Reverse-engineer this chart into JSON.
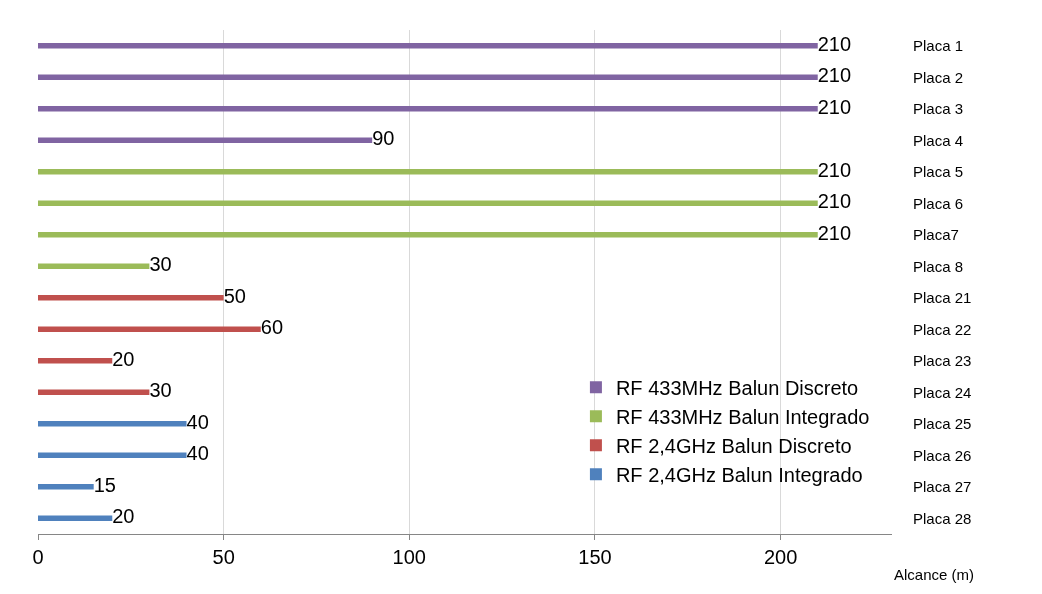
{
  "chart_data": {
    "type": "bar",
    "orientation": "horizontal",
    "xlabel": "Alcance (m)",
    "categories": [
      "Placa 1",
      "Placa 2",
      "Placa 3",
      "Placa 4",
      "Placa 5",
      "Placa 6",
      "Placa7",
      "Placa 8",
      "Placa 21",
      "Placa 22",
      "Placa 23",
      "Placa 24",
      "Placa 25",
      "Placa 26",
      "Placa 27",
      "Placa 28"
    ],
    "series": [
      {
        "name": "RF 433MHz Balun Discreto",
        "color": "#8064a2",
        "values": [
          210,
          210,
          210,
          90,
          null,
          null,
          null,
          null,
          null,
          null,
          null,
          null,
          null,
          null,
          null,
          null
        ]
      },
      {
        "name": "RF 433MHz Balun Integrado",
        "color": "#9bbb59",
        "values": [
          null,
          null,
          null,
          null,
          210,
          210,
          210,
          30,
          null,
          null,
          null,
          null,
          null,
          null,
          null,
          null
        ]
      },
      {
        "name": "RF 2,4GHz Balun Discreto",
        "color": "#c0504d",
        "values": [
          null,
          null,
          null,
          null,
          null,
          null,
          null,
          null,
          50,
          60,
          20,
          30,
          null,
          null,
          null,
          null
        ]
      },
      {
        "name": "RF 2,4GHz Balun Integrado",
        "color": "#4f81bd",
        "values": [
          null,
          null,
          null,
          null,
          null,
          null,
          null,
          null,
          null,
          null,
          null,
          null,
          40,
          40,
          15,
          20
        ]
      }
    ],
    "xlim": [
      0,
      230
    ],
    "xticks": [
      0,
      50,
      100,
      150,
      200
    ],
    "grid": "x",
    "legend": "bottom right",
    "data_labels": true
  }
}
